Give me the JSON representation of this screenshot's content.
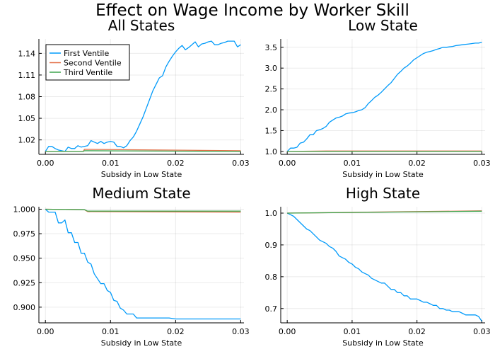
{
  "figure_title": "Effect on Wage Income by Worker Skill",
  "colors": {
    "first": "#009AFA",
    "second": "#E36F47",
    "third": "#3EA44E"
  },
  "chart_data": [
    {
      "type": "line",
      "title": "All States",
      "xlabel": "Subsidy in Low State",
      "ylabel": "",
      "xlim": [
        -0.001,
        0.0305
      ],
      "ylim": [
        1.0,
        1.16
      ],
      "xticks": [
        0.0,
        0.01,
        0.02,
        0.03
      ],
      "xtick_labels": [
        "0.00",
        "0.01",
        "0.02",
        "0.03"
      ],
      "yticks": [
        1.02,
        1.05,
        1.08,
        1.11,
        1.14
      ],
      "ytick_labels": [
        "1.02",
        "1.05",
        "1.08",
        "1.11",
        "1.14"
      ],
      "grid": true,
      "legend": "top-left",
      "series": [
        {
          "name": "First Ventile",
          "color_key": "first",
          "x": [
            0.0,
            0.0005,
            0.001,
            0.0015,
            0.002,
            0.0025,
            0.003,
            0.0035,
            0.004,
            0.0045,
            0.005,
            0.0055,
            0.006,
            0.0065,
            0.007,
            0.0075,
            0.008,
            0.0085,
            0.009,
            0.0095,
            0.01,
            0.0105,
            0.011,
            0.0115,
            0.012,
            0.0125,
            0.013,
            0.0135,
            0.014,
            0.0145,
            0.015,
            0.0155,
            0.016,
            0.0165,
            0.017,
            0.0175,
            0.018,
            0.0185,
            0.019,
            0.0195,
            0.02,
            0.0205,
            0.021,
            0.0215,
            0.022,
            0.0225,
            0.023,
            0.0235,
            0.024,
            0.0245,
            0.025,
            0.0255,
            0.026,
            0.0265,
            0.027,
            0.0275,
            0.028,
            0.0285,
            0.029,
            0.0295,
            0.03
          ],
          "y": [
            1.004,
            1.011,
            1.011,
            1.008,
            1.006,
            1.005,
            1.004,
            1.01,
            1.008,
            1.008,
            1.012,
            1.01,
            1.011,
            1.012,
            1.019,
            1.017,
            1.015,
            1.018,
            1.015,
            1.017,
            1.018,
            1.017,
            1.011,
            1.011,
            1.009,
            1.012,
            1.019,
            1.024,
            1.032,
            1.042,
            1.052,
            1.064,
            1.076,
            1.088,
            1.097,
            1.106,
            1.109,
            1.121,
            1.129,
            1.136,
            1.142,
            1.147,
            1.151,
            1.145,
            1.148,
            1.152,
            1.156,
            1.149,
            1.153,
            1.154,
            1.156,
            1.157,
            1.152,
            1.152,
            1.154,
            1.155,
            1.157,
            1.157,
            1.157,
            1.149,
            1.152
          ]
        },
        {
          "name": "Second Ventile",
          "color_key": "second",
          "x": [
            0.0,
            0.0058,
            0.006,
            0.03
          ],
          "y": [
            1.004,
            1.004,
            1.007,
            1.005
          ]
        },
        {
          "name": "Third Ventile",
          "color_key": "third",
          "x": [
            0.0,
            0.0058,
            0.006,
            0.03
          ],
          "y": [
            1.004,
            1.004,
            1.005,
            1.004
          ]
        }
      ]
    },
    {
      "type": "line",
      "title": "Low State",
      "xlabel": "Subsidy in Low State",
      "ylabel": "",
      "xlim": [
        -0.001,
        0.0305
      ],
      "ylim": [
        0.93,
        3.7
      ],
      "xticks": [
        0.0,
        0.01,
        0.02,
        0.03
      ],
      "xtick_labels": [
        "0.00",
        "0.01",
        "0.02",
        "0.03"
      ],
      "yticks": [
        1.0,
        1.5,
        2.0,
        2.5,
        3.0,
        3.5
      ],
      "ytick_labels": [
        "1.0",
        "1.5",
        "2.0",
        "2.5",
        "3.0",
        "3.5"
      ],
      "grid": true,
      "legend": "none",
      "series": [
        {
          "name": "First Ventile",
          "color_key": "first",
          "x": [
            0.0,
            0.0005,
            0.001,
            0.0015,
            0.002,
            0.0025,
            0.003,
            0.0035,
            0.004,
            0.0045,
            0.005,
            0.0055,
            0.006,
            0.0065,
            0.007,
            0.0075,
            0.008,
            0.0085,
            0.009,
            0.0095,
            0.01,
            0.0105,
            0.011,
            0.0115,
            0.012,
            0.0125,
            0.013,
            0.0135,
            0.014,
            0.0145,
            0.015,
            0.0155,
            0.016,
            0.0165,
            0.017,
            0.0175,
            0.018,
            0.0185,
            0.019,
            0.0195,
            0.02,
            0.0205,
            0.021,
            0.0215,
            0.022,
            0.0225,
            0.023,
            0.0235,
            0.024,
            0.0245,
            0.025,
            0.0255,
            0.026,
            0.0265,
            0.027,
            0.0275,
            0.028,
            0.0285,
            0.029,
            0.0295,
            0.03
          ],
          "y": [
            1.0,
            1.08,
            1.08,
            1.1,
            1.2,
            1.22,
            1.3,
            1.4,
            1.4,
            1.5,
            1.52,
            1.55,
            1.6,
            1.7,
            1.75,
            1.8,
            1.82,
            1.85,
            1.9,
            1.92,
            1.93,
            1.95,
            1.98,
            2.0,
            2.05,
            2.15,
            2.22,
            2.3,
            2.35,
            2.42,
            2.5,
            2.58,
            2.65,
            2.75,
            2.85,
            2.92,
            3.0,
            3.05,
            3.12,
            3.2,
            3.25,
            3.3,
            3.35,
            3.38,
            3.4,
            3.42,
            3.45,
            3.47,
            3.5,
            3.5,
            3.51,
            3.52,
            3.54,
            3.55,
            3.56,
            3.57,
            3.58,
            3.59,
            3.6,
            3.6,
            3.62
          ]
        },
        {
          "name": "Second Ventile",
          "color_key": "second",
          "x": [
            0.0,
            0.006,
            0.03
          ],
          "y": [
            1.0,
            1.01,
            1.01
          ]
        },
        {
          "name": "Third Ventile",
          "color_key": "third",
          "x": [
            0.0,
            0.006,
            0.03
          ],
          "y": [
            1.0,
            1.0,
            1.0
          ]
        }
      ]
    },
    {
      "type": "line",
      "title": "Medium State",
      "xlabel": "Subsidy in Low State",
      "ylabel": "",
      "xlim": [
        -0.001,
        0.0305
      ],
      "ylim": [
        0.884,
        1.0025
      ],
      "xticks": [
        0.0,
        0.01,
        0.02,
        0.03
      ],
      "xtick_labels": [
        "0.00",
        "0.01",
        "0.02",
        "0.03"
      ],
      "yticks": [
        0.9,
        0.925,
        0.95,
        0.975,
        1.0
      ],
      "ytick_labels": [
        "0.900",
        "0.925",
        "0.950",
        "0.975",
        "1.000"
      ],
      "grid": true,
      "legend": "none",
      "series": [
        {
          "name": "First Ventile",
          "color_key": "first",
          "x": [
            0.0,
            0.0005,
            0.001,
            0.0015,
            0.002,
            0.0025,
            0.003,
            0.0035,
            0.004,
            0.0045,
            0.005,
            0.0055,
            0.006,
            0.0065,
            0.007,
            0.0075,
            0.008,
            0.0085,
            0.009,
            0.0095,
            0.01,
            0.0105,
            0.011,
            0.0115,
            0.012,
            0.0125,
            0.013,
            0.0135,
            0.014,
            0.015,
            0.016,
            0.017,
            0.018,
            0.019,
            0.02,
            0.021,
            0.022,
            0.023,
            0.024,
            0.025,
            0.026,
            0.027,
            0.028,
            0.029,
            0.03
          ],
          "y": [
            1.0,
            0.997,
            0.997,
            0.997,
            0.986,
            0.986,
            0.989,
            0.976,
            0.976,
            0.966,
            0.966,
            0.955,
            0.955,
            0.946,
            0.944,
            0.934,
            0.929,
            0.924,
            0.924,
            0.917,
            0.915,
            0.907,
            0.906,
            0.899,
            0.897,
            0.893,
            0.893,
            0.893,
            0.889,
            0.889,
            0.889,
            0.889,
            0.889,
            0.889,
            0.888,
            0.888,
            0.888,
            0.888,
            0.888,
            0.888,
            0.888,
            0.888,
            0.888,
            0.888,
            0.888
          ]
        },
        {
          "name": "Second Ventile",
          "color_key": "second",
          "x": [
            0.0,
            0.006,
            0.0065,
            0.03
          ],
          "y": [
            1.0,
            0.9995,
            0.9975,
            0.997
          ]
        },
        {
          "name": "Third Ventile",
          "color_key": "third",
          "x": [
            0.0,
            0.006,
            0.0065,
            0.03
          ],
          "y": [
            1.0,
            0.9995,
            0.998,
            0.998
          ]
        }
      ]
    },
    {
      "type": "line",
      "title": "High State",
      "xlabel": "Subsidy in Low State",
      "ylabel": "",
      "xlim": [
        -0.001,
        0.0305
      ],
      "ylim": [
        0.655,
        1.02
      ],
      "xticks": [
        0.0,
        0.01,
        0.02,
        0.03
      ],
      "xtick_labels": [
        "0.00",
        "0.01",
        "0.02",
        "0.03"
      ],
      "yticks": [
        0.7,
        0.8,
        0.9,
        1.0
      ],
      "ytick_labels": [
        "0.7",
        "0.8",
        "0.9",
        "1.0"
      ],
      "grid": true,
      "legend": "none",
      "series": [
        {
          "name": "First Ventile",
          "color_key": "first",
          "x": [
            0.0,
            0.0005,
            0.001,
            0.0015,
            0.002,
            0.0025,
            0.003,
            0.0035,
            0.004,
            0.0045,
            0.005,
            0.0055,
            0.006,
            0.0065,
            0.007,
            0.0075,
            0.008,
            0.0085,
            0.009,
            0.0095,
            0.01,
            0.0105,
            0.011,
            0.0115,
            0.012,
            0.0125,
            0.013,
            0.0135,
            0.014,
            0.0145,
            0.015,
            0.0155,
            0.016,
            0.0165,
            0.017,
            0.0175,
            0.018,
            0.0185,
            0.019,
            0.0195,
            0.02,
            0.0205,
            0.021,
            0.0215,
            0.022,
            0.0225,
            0.023,
            0.0235,
            0.024,
            0.0245,
            0.025,
            0.0255,
            0.026,
            0.0265,
            0.027,
            0.0275,
            0.028,
            0.0285,
            0.029,
            0.0295,
            0.03
          ],
          "y": [
            1.0,
            0.995,
            0.99,
            0.98,
            0.97,
            0.96,
            0.95,
            0.945,
            0.935,
            0.925,
            0.915,
            0.91,
            0.905,
            0.895,
            0.89,
            0.88,
            0.865,
            0.86,
            0.855,
            0.845,
            0.84,
            0.83,
            0.825,
            0.815,
            0.81,
            0.805,
            0.795,
            0.79,
            0.785,
            0.78,
            0.78,
            0.77,
            0.76,
            0.76,
            0.75,
            0.75,
            0.74,
            0.74,
            0.73,
            0.73,
            0.73,
            0.725,
            0.72,
            0.72,
            0.715,
            0.71,
            0.71,
            0.7,
            0.7,
            0.695,
            0.695,
            0.69,
            0.69,
            0.69,
            0.685,
            0.68,
            0.68,
            0.68,
            0.68,
            0.675,
            0.66
          ]
        },
        {
          "name": "Second Ventile",
          "color_key": "second",
          "x": [
            0.0,
            0.03
          ],
          "y": [
            1.0,
            1.007
          ]
        },
        {
          "name": "Third Ventile",
          "color_key": "third",
          "x": [
            0.0,
            0.03
          ],
          "y": [
            1.0,
            1.006
          ]
        }
      ]
    }
  ]
}
